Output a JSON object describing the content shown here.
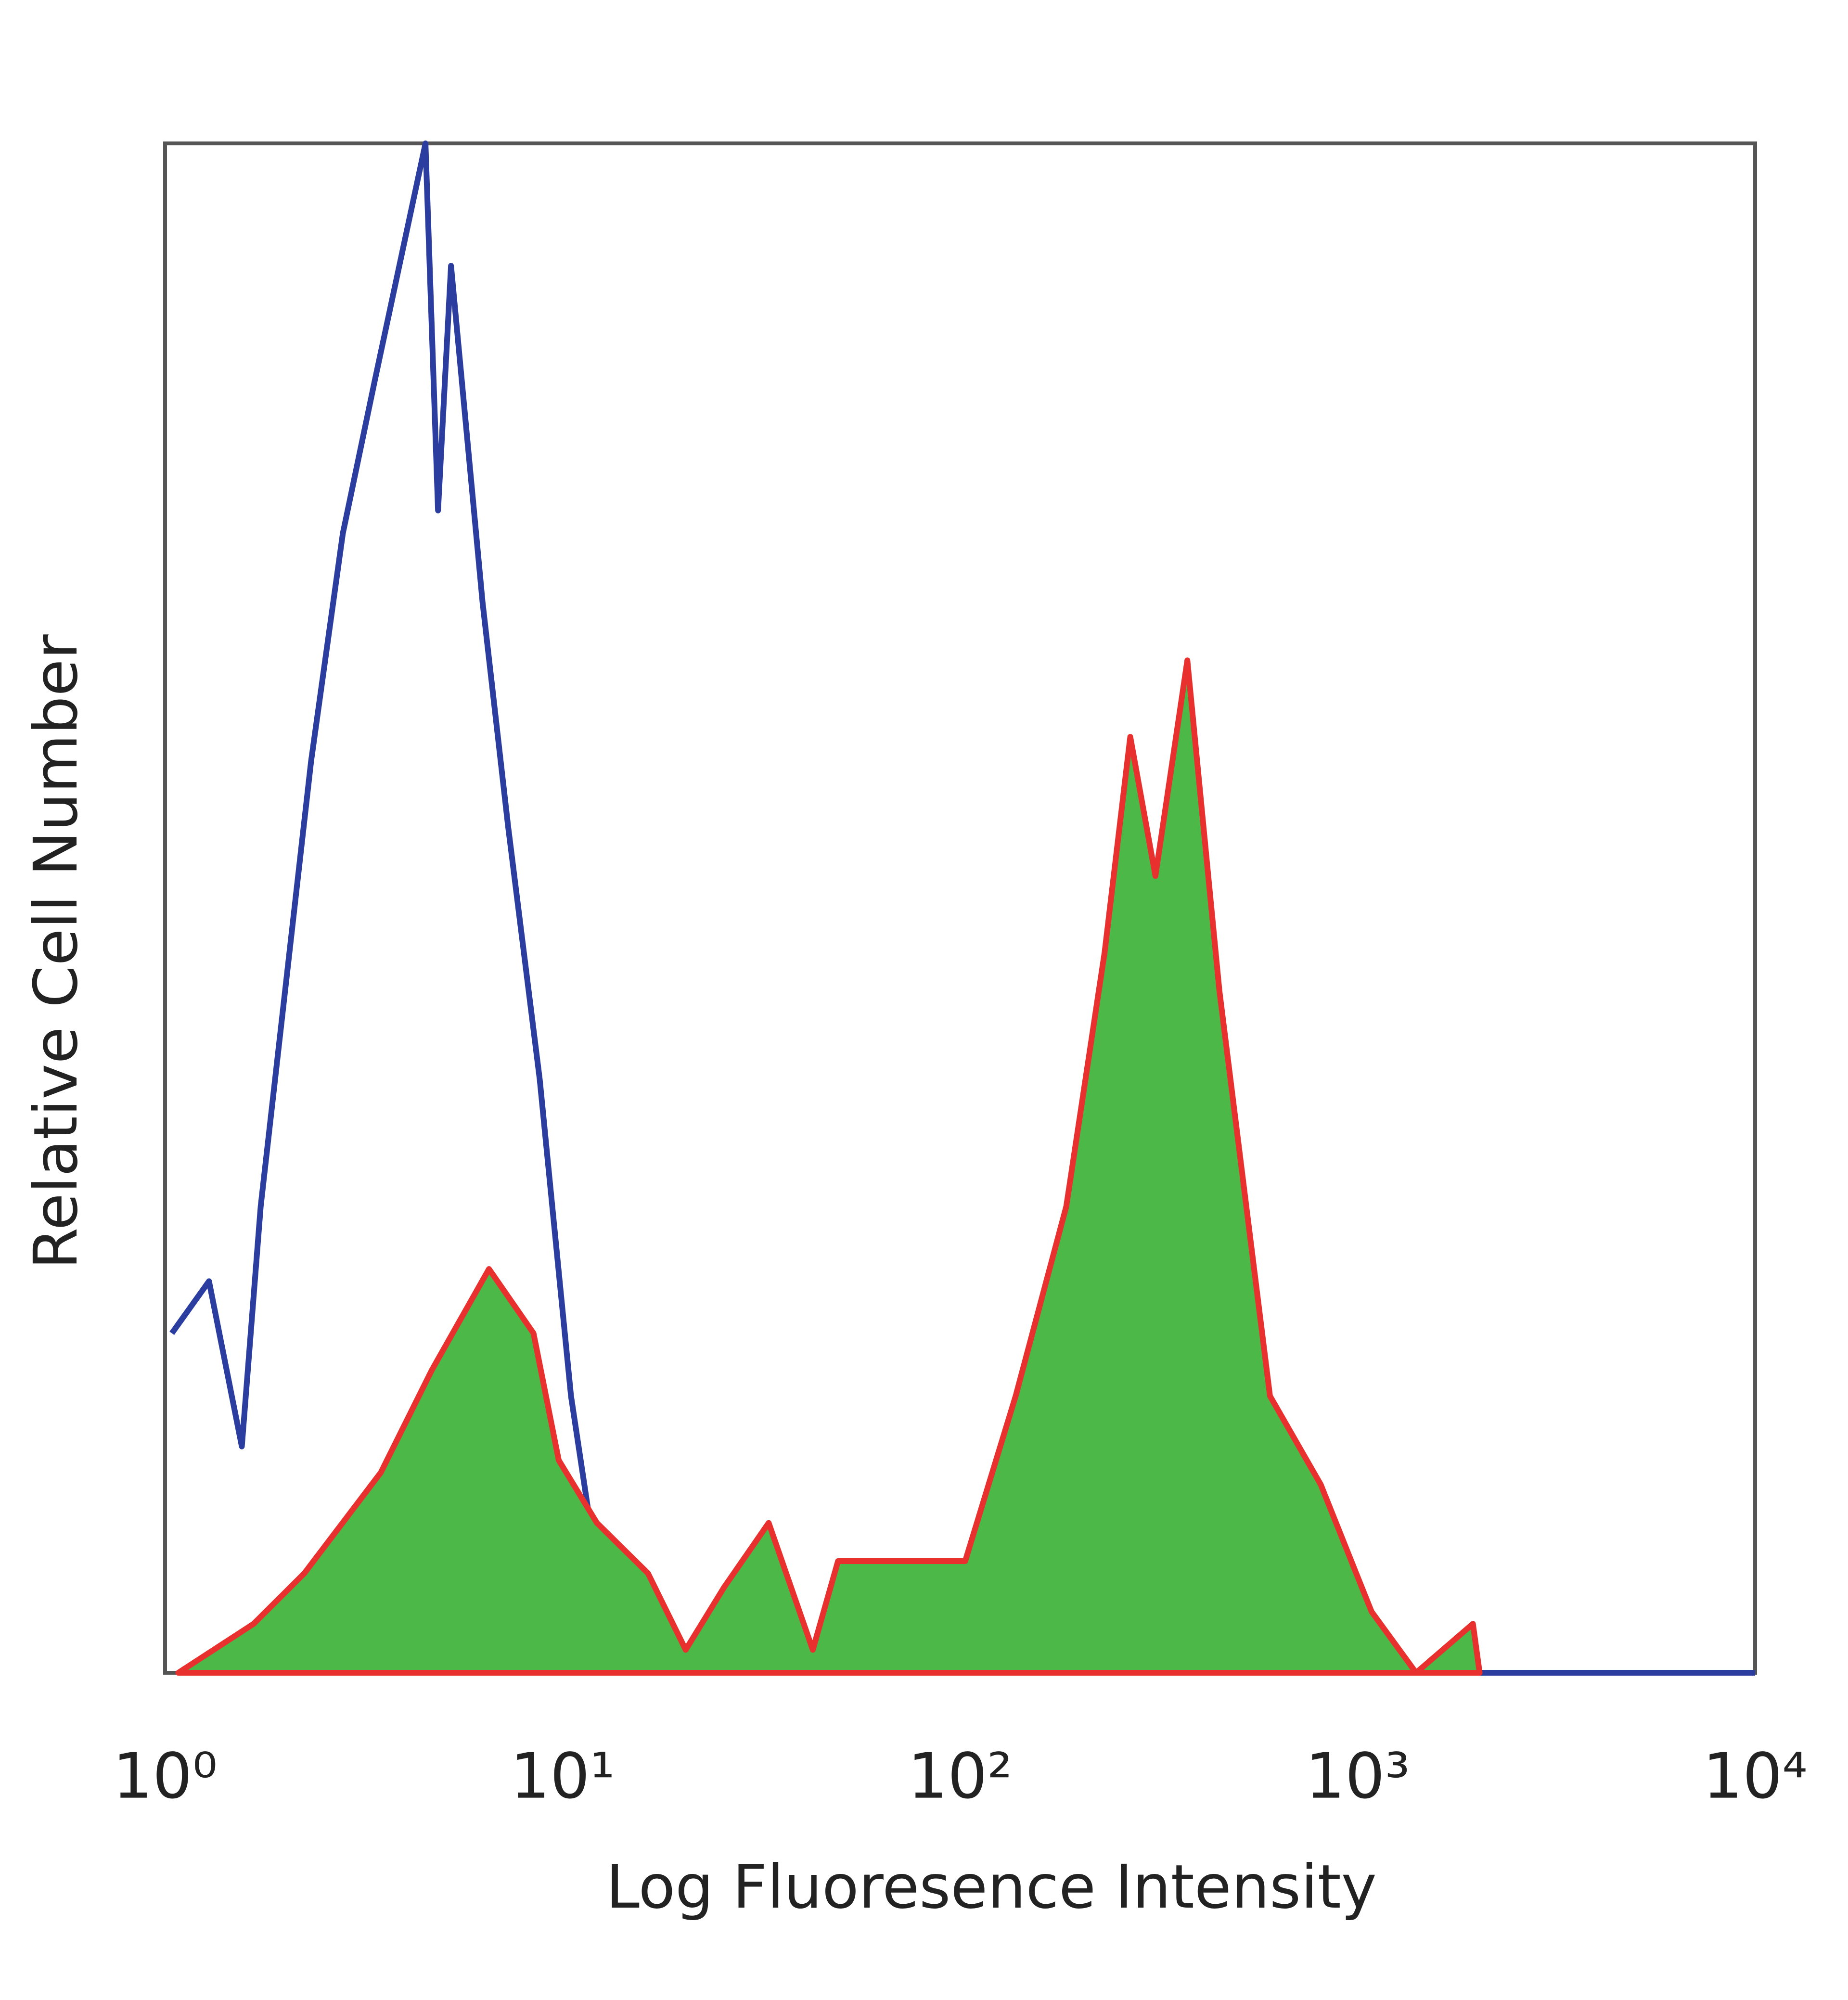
{
  "chart_data": {
    "type": "line",
    "xlabel": "Log Fluoresence Intensity",
    "ylabel": "Relative Cell Number",
    "xscale": "log",
    "xlim": [
      1,
      10000
    ],
    "ylim": [
      0,
      100
    ],
    "xticks": [
      {
        "value": 1,
        "label": "10⁰"
      },
      {
        "value": 10,
        "label": "10¹"
      },
      {
        "value": 100,
        "label": "10²"
      },
      {
        "value": 1000,
        "label": "10³"
      },
      {
        "value": 10000,
        "label": "10⁴"
      }
    ],
    "series": [
      {
        "color": "#2b3d9e",
        "fill": "none",
        "x": [
          1.04,
          1.29,
          1.56,
          1.74,
          2.33,
          2.8,
          3.37,
          4.52,
          4.86,
          5.24,
          6.29,
          7.29,
          8.76,
          10.5,
          13.1,
          14.1,
          10000
        ],
        "values": [
          22.2,
          25.6,
          14.8,
          30.5,
          59.6,
          74.5,
          84.5,
          100,
          76,
          92,
          70,
          55.4,
          38.8,
          18.1,
          1.5,
          0,
          0
        ]
      },
      {
        "color": "#e8312f",
        "fill": "#4cb848",
        "x": [
          1.08,
          1.67,
          2.24,
          3.49,
          4.69,
          6.53,
          8.45,
          9.78,
          12.2,
          16.4,
          20.4,
          25.5,
          33,
          42.6,
          49.3,
          103,
          138,
          185,
          231,
          268,
          310,
          373,
          449,
          602,
          808,
          1084,
          1403,
          1950,
          2028
        ],
        "values": [
          0,
          3.2,
          6.5,
          13.1,
          19.8,
          26.4,
          22.2,
          13.9,
          9.8,
          6.5,
          1.5,
          5.6,
          9.8,
          1.5,
          7.3,
          7.3,
          18.1,
          30.5,
          47.1,
          61.2,
          52.1,
          66.2,
          44.6,
          18.1,
          12.3,
          4.0,
          0,
          3.2,
          0
        ]
      }
    ]
  }
}
